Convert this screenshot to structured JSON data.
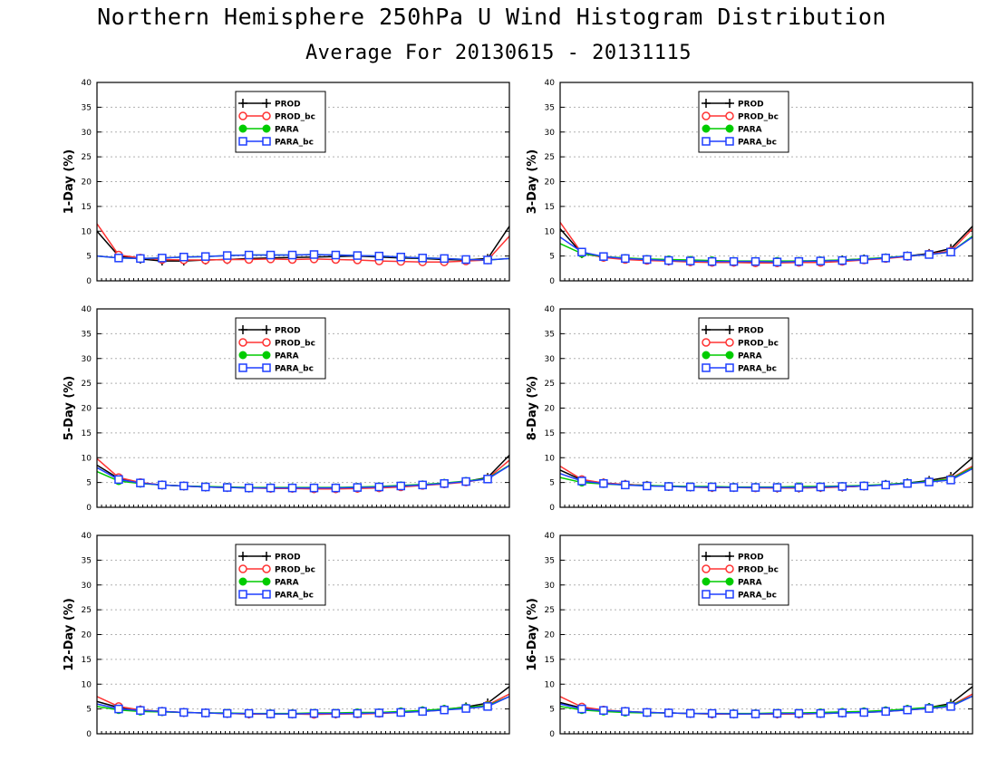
{
  "header": {
    "title": "Northern Hemisphere 250hPa U Wind Histogram Distribution",
    "subtitle": "Average For 20130615 - 20131115"
  },
  "legend_labels": [
    "PROD",
    "PROD_bc",
    "PARA",
    "PARA_bc"
  ],
  "series_styles": [
    {
      "name": "PROD",
      "color": "#000000",
      "marker": "cross"
    },
    {
      "name": "PROD_bc",
      "color": "#ff3333",
      "marker": "open-circle"
    },
    {
      "name": "PARA",
      "color": "#00cc00",
      "marker": "filled-circle"
    },
    {
      "name": "PARA_bc",
      "color": "#1f3fff",
      "marker": "open-square"
    }
  ],
  "chart_data": [
    {
      "type": "line",
      "ylabel": "1-Day (%)",
      "ylim": [
        0,
        40
      ],
      "yticks": [
        0,
        5,
        10,
        15,
        20,
        25,
        30,
        35,
        40
      ],
      "grid": true,
      "legend_position": "top-center",
      "series": [
        {
          "name": "PROD",
          "values": [
            10,
            5,
            4.4,
            4,
            4,
            4.2,
            4.3,
            4.5,
            4.6,
            4.7,
            4.8,
            4.9,
            5,
            4.8,
            4.6,
            4.5,
            4.3,
            4.2,
            4.5,
            11
          ]
        },
        {
          "name": "PROD_bc",
          "values": [
            11.5,
            5.2,
            4.6,
            4.3,
            4.2,
            4.2,
            4.3,
            4.3,
            4.4,
            4.3,
            4.4,
            4.3,
            4.2,
            4,
            3.9,
            3.8,
            3.8,
            4,
            4.2,
            9
          ]
        },
        {
          "name": "PARA",
          "values": [
            5,
            4.6,
            4.5,
            4.6,
            4.8,
            4.9,
            5.1,
            5.2,
            5.2,
            5.2,
            5.3,
            5.2,
            5.1,
            5,
            4.8,
            4.6,
            4.5,
            4.3,
            4.2,
            4.5
          ]
        },
        {
          "name": "PARA_bc",
          "values": [
            5,
            4.6,
            4.5,
            4.6,
            4.8,
            4.9,
            5.1,
            5.2,
            5.2,
            5.2,
            5.3,
            5.2,
            5.1,
            5,
            4.8,
            4.6,
            4.5,
            4.3,
            4.2,
            4.5
          ]
        }
      ]
    },
    {
      "type": "line",
      "ylabel": "3-Day (%)",
      "ylim": [
        0,
        40
      ],
      "yticks": [
        0,
        5,
        10,
        15,
        20,
        25,
        30,
        35,
        40
      ],
      "grid": true,
      "legend_position": "top-center",
      "series": [
        {
          "name": "PROD",
          "values": [
            10.5,
            5.5,
            4.8,
            4.4,
            4.2,
            4,
            3.9,
            3.8,
            3.8,
            3.8,
            3.8,
            3.9,
            4,
            4.2,
            4.4,
            4.6,
            5,
            5.5,
            6.5,
            11
          ]
        },
        {
          "name": "PROD_bc",
          "values": [
            11.8,
            5.6,
            4.7,
            4.3,
            4.1,
            4,
            3.8,
            3.7,
            3.7,
            3.6,
            3.6,
            3.7,
            3.7,
            3.9,
            4.2,
            4.5,
            4.9,
            5.4,
            6,
            10.5
          ]
        },
        {
          "name": "PARA",
          "values": [
            7.5,
            5.5,
            4.9,
            4.6,
            4.4,
            4.3,
            4.2,
            4.1,
            4,
            4,
            4,
            4,
            4.1,
            4.2,
            4.4,
            4.7,
            5,
            5.3,
            5.8,
            9
          ]
        },
        {
          "name": "PARA_bc",
          "values": [
            8.8,
            5.8,
            4.9,
            4.5,
            4.3,
            4.1,
            4,
            3.9,
            3.9,
            3.9,
            3.8,
            3.9,
            4,
            4.1,
            4.3,
            4.6,
            5,
            5.3,
            5.8,
            8.8
          ]
        }
      ]
    },
    {
      "type": "line",
      "ylabel": "5-Day (%)",
      "ylim": [
        0,
        40
      ],
      "yticks": [
        0,
        5,
        10,
        15,
        20,
        25,
        30,
        35,
        40
      ],
      "grid": true,
      "legend_position": "top-center",
      "series": [
        {
          "name": "PROD",
          "values": [
            8.5,
            5.8,
            4.9,
            4.5,
            4.3,
            4.1,
            4,
            3.9,
            3.9,
            3.9,
            3.8,
            3.8,
            3.9,
            4,
            4.2,
            4.5,
            4.8,
            5.2,
            6,
            10.5
          ]
        },
        {
          "name": "PROD_bc",
          "values": [
            9.8,
            6,
            5,
            4.5,
            4.3,
            4.1,
            4,
            3.9,
            3.8,
            3.8,
            3.7,
            3.7,
            3.8,
            3.9,
            4.1,
            4.4,
            4.7,
            5.1,
            5.8,
            9.5
          ]
        },
        {
          "name": "PARA",
          "values": [
            7.2,
            5.3,
            4.8,
            4.5,
            4.3,
            4.2,
            4.1,
            4,
            4,
            4,
            4,
            4,
            4.1,
            4.2,
            4.4,
            4.6,
            4.9,
            5.3,
            5.8,
            8.5
          ]
        },
        {
          "name": "PARA_bc",
          "values": [
            8,
            5.6,
            4.9,
            4.5,
            4.3,
            4.1,
            4,
            3.9,
            3.9,
            3.9,
            3.9,
            3.9,
            4,
            4.1,
            4.3,
            4.5,
            4.8,
            5.2,
            5.7,
            8.4
          ]
        }
      ]
    },
    {
      "type": "line",
      "ylabel": "8-Day (%)",
      "ylim": [
        0,
        40
      ],
      "yticks": [
        0,
        5,
        10,
        15,
        20,
        25,
        30,
        35,
        40
      ],
      "grid": true,
      "legend_position": "top-center",
      "series": [
        {
          "name": "PROD",
          "values": [
            7.5,
            5.5,
            4.9,
            4.6,
            4.4,
            4.2,
            4.1,
            4,
            4,
            4,
            3.9,
            3.9,
            4,
            4.1,
            4.3,
            4.6,
            4.9,
            5.4,
            6.2,
            10
          ]
        },
        {
          "name": "PROD_bc",
          "values": [
            8.3,
            5.6,
            4.9,
            4.6,
            4.4,
            4.2,
            4.1,
            4,
            4,
            3.9,
            3.9,
            3.9,
            4,
            4.1,
            4.3,
            4.5,
            4.8,
            5.2,
            5.8,
            8.3
          ]
        },
        {
          "name": "PARA",
          "values": [
            6,
            5,
            4.7,
            4.5,
            4.4,
            4.3,
            4.2,
            4.2,
            4.1,
            4.1,
            4.1,
            4.2,
            4.2,
            4.3,
            4.4,
            4.6,
            4.9,
            5.2,
            5.7,
            8
          ]
        },
        {
          "name": "PARA_bc",
          "values": [
            6.8,
            5.3,
            4.8,
            4.5,
            4.3,
            4.2,
            4.1,
            4.1,
            4,
            4,
            4,
            4,
            4.1,
            4.2,
            4.3,
            4.5,
            4.8,
            5.1,
            5.5,
            7.8
          ]
        }
      ]
    },
    {
      "type": "line",
      "ylabel": "12-Day (%)",
      "ylim": [
        0,
        40
      ],
      "yticks": [
        0,
        5,
        10,
        15,
        20,
        25,
        30,
        35,
        40
      ],
      "grid": true,
      "legend_position": "top-center",
      "series": [
        {
          "name": "PROD",
          "values": [
            6.5,
            5.3,
            4.8,
            4.5,
            4.3,
            4.2,
            4.1,
            4,
            4,
            4,
            4,
            4,
            4.1,
            4.2,
            4.4,
            4.6,
            4.9,
            5.4,
            6.2,
            9.5
          ]
        },
        {
          "name": "PROD_bc",
          "values": [
            7.5,
            5.5,
            4.8,
            4.5,
            4.3,
            4.2,
            4.1,
            4,
            4,
            4,
            3.9,
            4,
            4,
            4.1,
            4.3,
            4.5,
            4.8,
            5.2,
            5.8,
            8
          ]
        },
        {
          "name": "PARA",
          "values": [
            5.5,
            4.8,
            4.5,
            4.4,
            4.3,
            4.2,
            4.2,
            4.1,
            4.1,
            4.1,
            4.2,
            4.2,
            4.3,
            4.3,
            4.5,
            4.7,
            5,
            5.3,
            5.7,
            7.5
          ]
        },
        {
          "name": "PARA_bc",
          "values": [
            6,
            5,
            4.7,
            4.5,
            4.3,
            4.2,
            4.1,
            4.1,
            4,
            4,
            4.1,
            4.1,
            4.1,
            4.2,
            4.3,
            4.5,
            4.8,
            5.1,
            5.5,
            7.5
          ]
        }
      ]
    },
    {
      "type": "line",
      "ylabel": "16-Day (%)",
      "ylim": [
        0,
        40
      ],
      "yticks": [
        0,
        5,
        10,
        15,
        20,
        25,
        30,
        35,
        40
      ],
      "grid": true,
      "legend_position": "top-center",
      "series": [
        {
          "name": "PROD",
          "values": [
            6.3,
            5.2,
            4.7,
            4.5,
            4.3,
            4.2,
            4.1,
            4,
            4,
            4,
            4,
            4,
            4.1,
            4.2,
            4.4,
            4.6,
            4.9,
            5.3,
            6.1,
            9.5
          ]
        },
        {
          "name": "PROD_bc",
          "values": [
            7.5,
            5.4,
            4.8,
            4.5,
            4.3,
            4.2,
            4.1,
            4,
            4,
            4,
            4,
            4,
            4.1,
            4.2,
            4.3,
            4.5,
            4.8,
            5.1,
            5.7,
            8
          ]
        },
        {
          "name": "PARA",
          "values": [
            5.5,
            4.8,
            4.5,
            4.3,
            4.2,
            4.2,
            4.1,
            4.1,
            4.1,
            4.1,
            4.2,
            4.2,
            4.3,
            4.4,
            4.5,
            4.7,
            5,
            5.3,
            5.7,
            7.6
          ]
        },
        {
          "name": "PARA_bc",
          "values": [
            6,
            5,
            4.7,
            4.5,
            4.3,
            4.2,
            4.1,
            4.1,
            4,
            4,
            4.1,
            4.1,
            4.1,
            4.2,
            4.3,
            4.5,
            4.8,
            5.1,
            5.5,
            7.6
          ]
        }
      ]
    }
  ]
}
